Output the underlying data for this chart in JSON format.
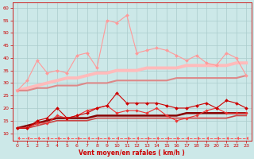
{
  "bg_color": "#cce8e8",
  "grid_color": "#aacccc",
  "xlabel": "Vent moyen/en rafales ( km/h )",
  "xlim": [
    -0.5,
    23.5
  ],
  "ylim": [
    7,
    62
  ],
  "yticks": [
    10,
    15,
    20,
    25,
    30,
    35,
    40,
    45,
    50,
    55,
    60
  ],
  "xticks": [
    0,
    1,
    2,
    3,
    4,
    5,
    6,
    7,
    8,
    9,
    10,
    11,
    12,
    13,
    14,
    15,
    16,
    17,
    18,
    19,
    20,
    21,
    22,
    23
  ],
  "series": [
    {
      "x": [
        0,
        1,
        2,
        3,
        4,
        5,
        6,
        7,
        8,
        9,
        10,
        11,
        12,
        13,
        14,
        15,
        16,
        17,
        18,
        19,
        20,
        21,
        22,
        23
      ],
      "y": [
        27,
        31,
        39,
        34,
        35,
        34,
        41,
        42,
        36,
        55,
        54,
        57,
        42,
        43,
        44,
        43,
        41,
        39,
        41,
        38,
        37,
        42,
        40,
        33
      ],
      "color": "#ff9999",
      "lw": 0.8,
      "marker": "D",
      "ms": 2.0,
      "zorder": 3
    },
    {
      "x": [
        0,
        1,
        2,
        3,
        4,
        5,
        6,
        7,
        8,
        9,
        10,
        11,
        12,
        13,
        14,
        15,
        16,
        17,
        18,
        19,
        20,
        21,
        22,
        23
      ],
      "y": [
        27,
        28,
        29,
        30,
        31,
        32,
        32,
        33,
        34,
        34,
        35,
        35,
        35,
        36,
        36,
        36,
        36,
        37,
        37,
        37,
        37,
        37,
        38,
        38
      ],
      "color": "#ffbbbb",
      "lw": 2.8,
      "marker": null,
      "ms": 0,
      "zorder": 2
    },
    {
      "x": [
        0,
        1,
        2,
        3,
        4,
        5,
        6,
        7,
        8,
        9,
        10,
        11,
        12,
        13,
        14,
        15,
        16,
        17,
        18,
        19,
        20,
        21,
        22,
        23
      ],
      "y": [
        27,
        27,
        28,
        28,
        29,
        29,
        29,
        30,
        30,
        30,
        31,
        31,
        31,
        31,
        31,
        31,
        32,
        32,
        32,
        32,
        32,
        32,
        32,
        33
      ],
      "color": "#dd8888",
      "lw": 1.5,
      "marker": null,
      "ms": 0,
      "zorder": 2
    },
    {
      "x": [
        0,
        1,
        2,
        3,
        4,
        5,
        6,
        7,
        8,
        9,
        10,
        11,
        12,
        13,
        14,
        15,
        16,
        17,
        18,
        19,
        20,
        21,
        22,
        23
      ],
      "y": [
        12,
        12,
        15,
        16,
        20,
        16,
        17,
        18,
        20,
        21,
        26,
        22,
        22,
        22,
        22,
        21,
        20,
        20,
        21,
        22,
        20,
        23,
        22,
        20
      ],
      "color": "#cc0000",
      "lw": 0.8,
      "marker": "D",
      "ms": 2.0,
      "zorder": 4
    },
    {
      "x": [
        0,
        1,
        2,
        3,
        4,
        5,
        6,
        7,
        8,
        9,
        10,
        11,
        12,
        13,
        14,
        15,
        16,
        17,
        18,
        19,
        20,
        21,
        22,
        23
      ],
      "y": [
        12,
        13,
        14,
        15,
        16,
        16,
        16,
        16,
        17,
        17,
        17,
        17,
        17,
        17,
        17,
        17,
        17,
        18,
        18,
        18,
        18,
        18,
        18,
        18
      ],
      "color": "#880000",
      "lw": 1.8,
      "marker": null,
      "ms": 0,
      "zorder": 2
    },
    {
      "x": [
        0,
        1,
        2,
        3,
        4,
        5,
        6,
        7,
        8,
        9,
        10,
        11,
        12,
        13,
        14,
        15,
        16,
        17,
        18,
        19,
        20,
        21,
        22,
        23
      ],
      "y": [
        12,
        12,
        13,
        14,
        15,
        15,
        15,
        15,
        16,
        16,
        16,
        16,
        16,
        16,
        16,
        16,
        16,
        16,
        16,
        16,
        16,
        16,
        17,
        17
      ],
      "color": "#cc4444",
      "lw": 1.2,
      "marker": null,
      "ms": 0,
      "zorder": 2
    },
    {
      "x": [
        0,
        1,
        2,
        3,
        4,
        5,
        6,
        7,
        8,
        9,
        10,
        11,
        12,
        13,
        14,
        15,
        16,
        17,
        18,
        19,
        20,
        21,
        22,
        23
      ],
      "y": [
        12,
        12,
        14,
        14,
        17,
        16,
        17,
        19,
        20,
        21,
        18,
        19,
        19,
        18,
        20,
        17,
        15,
        16,
        17,
        19,
        20,
        18,
        18,
        18
      ],
      "color": "#ee3333",
      "lw": 0.8,
      "marker": "D",
      "ms": 1.8,
      "zorder": 3
    },
    {
      "x": [
        0,
        1,
        2,
        3,
        4,
        5,
        6,
        7,
        8,
        9,
        10,
        11,
        12,
        13,
        14,
        15,
        16,
        17,
        18,
        19,
        20,
        21,
        22,
        23
      ],
      "y": [
        8,
        8,
        8,
        8,
        8,
        8,
        8,
        8,
        8,
        8,
        8,
        8,
        8,
        8,
        8,
        8,
        8,
        8,
        8,
        8,
        8,
        8,
        8,
        8
      ],
      "color": "#ff5555",
      "lw": 0.7,
      "marker": 4,
      "ms": 3.0,
      "linestyle": "--",
      "zorder": 1
    }
  ]
}
